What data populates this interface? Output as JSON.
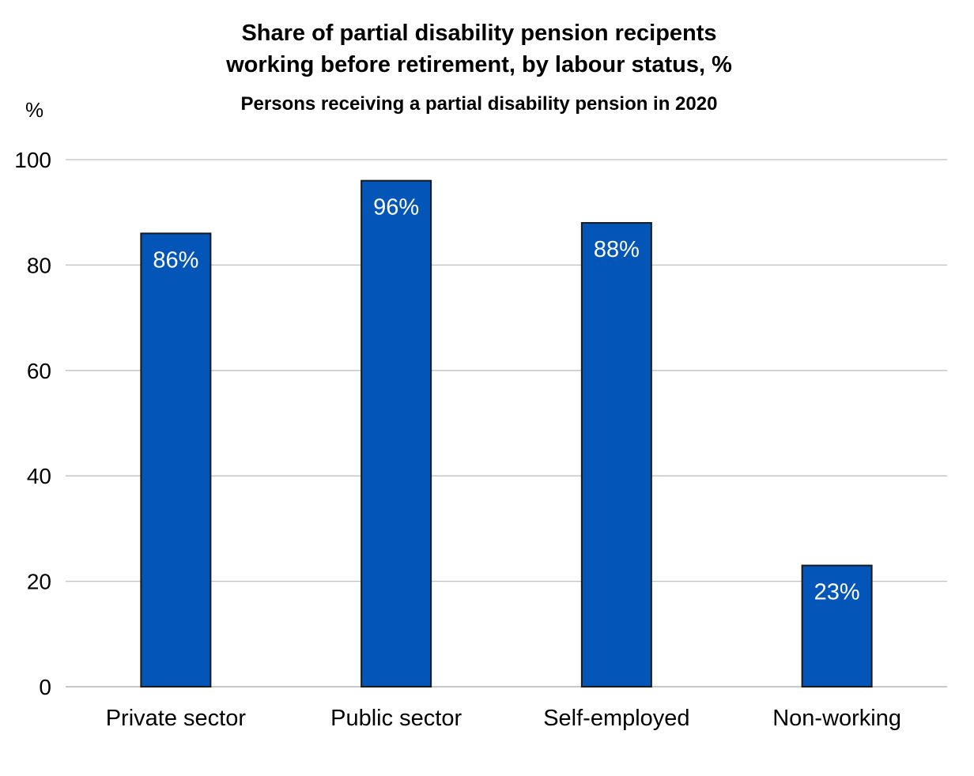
{
  "chart_data": {
    "type": "bar",
    "title": "Share of partial disability pension recipents working before retirement, by labour status, %",
    "title_lines": [
      "Share of partial disability pension recipents",
      "working before retirement, by labour status, %"
    ],
    "subtitle": "Persons receiving a partial disability pension in 2020",
    "ylabel": "%",
    "xlabel": "",
    "categories": [
      "Private sector",
      "Public sector",
      "Self-employed",
      "Non-working"
    ],
    "values": [
      86,
      96,
      88,
      23
    ],
    "data_labels": [
      "86%",
      "96%",
      "88%",
      "23%"
    ],
    "ylim": [
      0,
      100
    ],
    "yticks": [
      0,
      20,
      40,
      60,
      80,
      100
    ],
    "grid": true,
    "legend": "none",
    "colors": {
      "bar": "#0455B8",
      "bar_border": "#1a1a1a",
      "grid": "#BFBFBF",
      "label": "#FFFFFF"
    }
  }
}
